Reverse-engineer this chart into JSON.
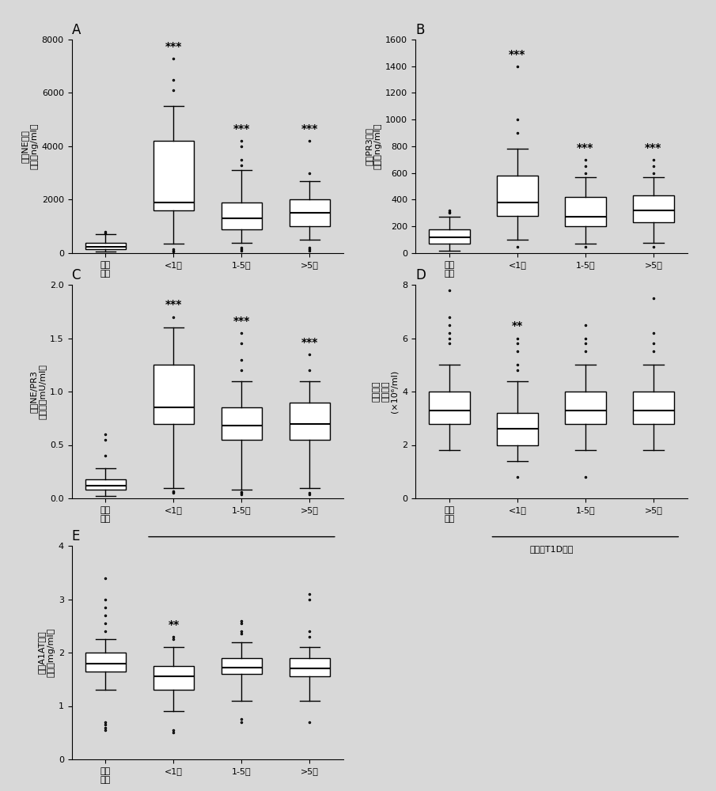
{
  "panels": [
    "A",
    "B",
    "C",
    "D",
    "E"
  ],
  "background_color": "#d8d8d8",
  "box_facecolor": "white",
  "box_edgecolor": "black",
  "median_color": "black",
  "whisker_color": "black",
  "flier_color": "black",
  "panel_A": {
    "title": "A",
    "ylabel_line1": "循环NE蛋白",
    "ylabel_line2": "水平（ng/ml）",
    "xlabel_line1": "健康",
    "xlabel_line2": "对照",
    "xlabel_group": "诊断的T1D患者",
    "group_labels": [
      "健康\n对照",
      "<1年",
      "1-5年",
      ">5年"
    ],
    "sig_labels": [
      "",
      "***",
      "***",
      "***"
    ],
    "ylim": [
      0,
      8000
    ],
    "yticks": [
      0,
      2000,
      4000,
      6000,
      8000
    ],
    "boxes": [
      {
        "q1": 150,
        "median": 250,
        "q3": 380,
        "whislo": 50,
        "whishi": 700,
        "fliers": [
          750,
          800
        ]
      },
      {
        "q1": 1600,
        "median": 1900,
        "q3": 4200,
        "whislo": 350,
        "whishi": 5500,
        "fliers": [
          50,
          100,
          150,
          6100,
          6500,
          7300
        ]
      },
      {
        "q1": 900,
        "median": 1300,
        "q3": 1900,
        "whislo": 400,
        "whishi": 3100,
        "fliers": [
          100,
          150,
          200,
          3300,
          3500,
          4000,
          4200
        ]
      },
      {
        "q1": 1000,
        "median": 1500,
        "q3": 2000,
        "whislo": 500,
        "whishi": 2700,
        "fliers": [
          100,
          150,
          200,
          3000,
          4200
        ]
      }
    ]
  },
  "panel_B": {
    "title": "B",
    "ylabel_line1": "循环PR3蛋白",
    "ylabel_line2": "水平（ng/ml）",
    "group_labels": [
      "健康\n对照",
      "<1年",
      "1-5年",
      ">5年"
    ],
    "sig_labels": [
      "",
      "***",
      "***",
      "***"
    ],
    "ylim": [
      0,
      1600
    ],
    "yticks": [
      0,
      200,
      400,
      600,
      800,
      1000,
      1200,
      1400,
      1600
    ],
    "boxes": [
      {
        "q1": 70,
        "median": 120,
        "q3": 180,
        "whislo": 20,
        "whishi": 270,
        "fliers": [
          300,
          310,
          320
        ]
      },
      {
        "q1": 280,
        "median": 380,
        "q3": 580,
        "whislo": 100,
        "whishi": 780,
        "fliers": [
          50,
          900,
          1000,
          1400
        ]
      },
      {
        "q1": 200,
        "median": 270,
        "q3": 420,
        "whislo": 70,
        "whishi": 570,
        "fliers": [
          50,
          600,
          650,
          700
        ]
      },
      {
        "q1": 230,
        "median": 320,
        "q3": 430,
        "whislo": 80,
        "whishi": 570,
        "fliers": [
          50,
          600,
          650,
          700
        ]
      }
    ]
  },
  "panel_C": {
    "title": "C",
    "ylabel_line1": "循环NE/PR3",
    "ylabel_line2": "酶活性（mU/ml）",
    "group_labels": [
      "健康\n对照",
      "<1年",
      "1-5年",
      ">5年"
    ],
    "sig_labels": [
      "",
      "***",
      "***",
      "***"
    ],
    "ylim": [
      0.0,
      2.0
    ],
    "yticks": [
      0.0,
      0.5,
      1.0,
      1.5,
      2.0
    ],
    "boxes": [
      {
        "q1": 0.08,
        "median": 0.12,
        "q3": 0.18,
        "whislo": 0.02,
        "whishi": 0.28,
        "fliers": [
          0.4,
          0.55,
          0.6
        ]
      },
      {
        "q1": 0.7,
        "median": 0.85,
        "q3": 1.25,
        "whislo": 0.1,
        "whishi": 1.6,
        "fliers": [
          0.05,
          0.06,
          0.07,
          1.7
        ]
      },
      {
        "q1": 0.55,
        "median": 0.68,
        "q3": 0.85,
        "whislo": 0.08,
        "whishi": 1.1,
        "fliers": [
          0.04,
          0.05,
          0.06,
          1.2,
          1.3,
          1.45,
          1.55
        ]
      },
      {
        "q1": 0.55,
        "median": 0.7,
        "q3": 0.9,
        "whislo": 0.1,
        "whishi": 1.1,
        "fliers": [
          0.04,
          0.05,
          1.2,
          1.35
        ]
      }
    ]
  },
  "panel_D": {
    "title": "D",
    "ylabel_line1": "喷中性粒",
    "ylabel_line2": "细胞计数",
    "ylabel_line3": "(×10⁶/ml)",
    "group_labels": [
      "健康\n对照",
      "<1年",
      "1-5年",
      ">5年"
    ],
    "sig_labels": [
      "",
      "**",
      "",
      ""
    ],
    "ylim": [
      0,
      8
    ],
    "yticks": [
      0,
      2,
      4,
      6,
      8
    ],
    "boxes": [
      {
        "q1": 2.8,
        "median": 3.3,
        "q3": 4.0,
        "whislo": 1.8,
        "whishi": 5.0,
        "fliers": [
          5.8,
          6.0,
          6.2,
          6.5,
          6.8,
          7.8
        ]
      },
      {
        "q1": 2.0,
        "median": 2.6,
        "q3": 3.2,
        "whislo": 1.4,
        "whishi": 4.4,
        "fliers": [
          0.8,
          4.8,
          5.0,
          5.5,
          5.8,
          6.0
        ]
      },
      {
        "q1": 2.8,
        "median": 3.3,
        "q3": 4.0,
        "whislo": 1.8,
        "whishi": 5.0,
        "fliers": [
          0.8,
          5.5,
          5.8,
          6.0,
          6.5
        ]
      },
      {
        "q1": 2.8,
        "median": 3.3,
        "q3": 4.0,
        "whislo": 1.8,
        "whishi": 5.0,
        "fliers": [
          5.5,
          5.8,
          6.2,
          7.5
        ]
      }
    ]
  },
  "panel_E": {
    "title": "E",
    "ylabel_line1": "循环A1AT蛋白",
    "ylabel_line2": "水平（mg/ml）",
    "group_labels": [
      "健康\n对照",
      "<1年",
      "1-5年",
      ">5年"
    ],
    "sig_labels": [
      "",
      "**",
      "",
      ""
    ],
    "ylim": [
      0,
      4
    ],
    "yticks": [
      0,
      1,
      2,
      3,
      4
    ],
    "boxes": [
      {
        "q1": 1.65,
        "median": 1.8,
        "q3": 2.0,
        "whislo": 1.3,
        "whishi": 2.25,
        "fliers": [
          0.55,
          0.6,
          0.65,
          0.7,
          2.4,
          2.55,
          2.7,
          2.85,
          3.0,
          3.4
        ]
      },
      {
        "q1": 1.3,
        "median": 1.55,
        "q3": 1.75,
        "whislo": 0.9,
        "whishi": 2.1,
        "fliers": [
          0.5,
          0.55,
          2.25,
          2.3
        ]
      },
      {
        "q1": 1.6,
        "median": 1.72,
        "q3": 1.9,
        "whislo": 1.1,
        "whishi": 2.2,
        "fliers": [
          0.7,
          0.75,
          2.35,
          2.4,
          2.55,
          2.6
        ]
      },
      {
        "q1": 1.55,
        "median": 1.7,
        "q3": 1.9,
        "whislo": 1.1,
        "whishi": 2.1,
        "fliers": [
          0.7,
          2.3,
          2.4,
          3.0,
          3.1
        ]
      }
    ]
  }
}
